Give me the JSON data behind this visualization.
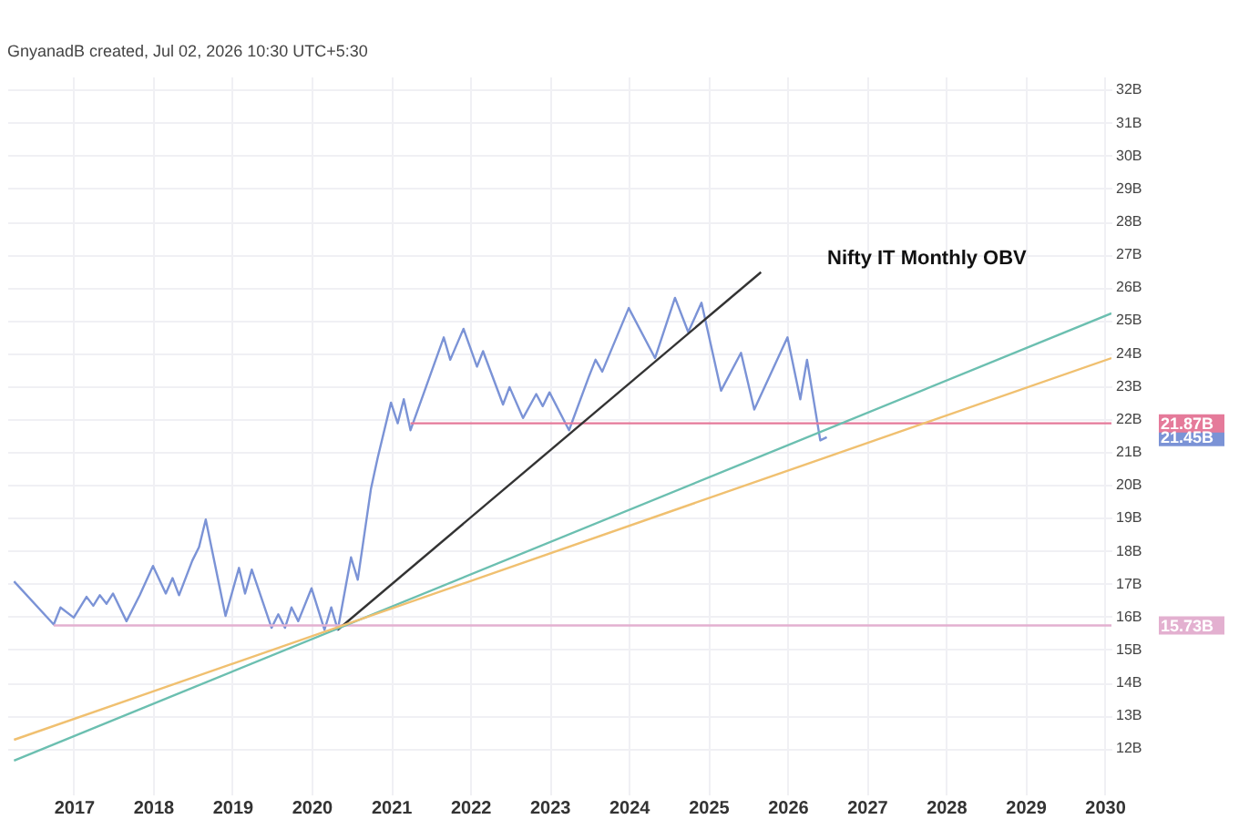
{
  "chart_data": {
    "type": "line",
    "title": "Nifty IT Monthly OBV",
    "annotations": [
      "GnyanadB created, Jul 02, 2026 10:30 UTC+5:30",
      {
        "text": "21.87B",
        "x": "2030-02",
        "y": 21.87
      },
      "21.45B",
      {
        "text": "15.73B",
        "x": "2030-02",
        "y": 15.73
      }
    ],
    "series": [
      {
        "type": "line",
        "color": "#7b93d6",
        "x": [
          "2016-04",
          "2016-10",
          "2016-11",
          "2017-01",
          "2017-03",
          "2017-04",
          "2017-05",
          "2017-06",
          "2017-07",
          "2017-09",
          "2017-11",
          "2018-01",
          "2018-03",
          "2018-04",
          "2018-05",
          "2018-07",
          "2018-08",
          "2018-09",
          "2018-12",
          "2019-02",
          "2019-03",
          "2019-04",
          "2019-07",
          "2019-08",
          "2019-09",
          "2019-10",
          "2019-11",
          "2020-01",
          "2020-03",
          "2020-04",
          "2020-05",
          "2020-07",
          "2020-08",
          "2020-10",
          "2020-11",
          "2021-01",
          "2021-02",
          "2021-03",
          "2021-04",
          "2021-09",
          "2021-10",
          "2021-12",
          "2022-02",
          "2022-03",
          "2022-06",
          "2022-07",
          "2022-09",
          "2022-11",
          "2022-12",
          "2023-01",
          "2023-04",
          "2023-07",
          "2023-08",
          "2023-09",
          "2024-01",
          "2024-05",
          "2024-08",
          "2024-10",
          "2024-12",
          "2025-03",
          "2025-06",
          "2025-08",
          "2026-01",
          "2026-03",
          "2026-04",
          "2026-06",
          "2026-07"
        ],
        "values": [
          17.07,
          15.76,
          16.28,
          15.97,
          16.6,
          16.33,
          16.65,
          16.39,
          16.7,
          15.86,
          16.65,
          17.54,
          16.7,
          17.17,
          16.65,
          17.7,
          18.11,
          18.95,
          16.02,
          17.48,
          16.7,
          17.43,
          15.66,
          16.07,
          15.66,
          16.28,
          15.86,
          16.86,
          15.6,
          16.28,
          15.6,
          17.8,
          17.12,
          19.89,
          20.83,
          22.5,
          21.87,
          22.6,
          21.66,
          24.48,
          23.8,
          24.74,
          23.59,
          24.06,
          22.44,
          22.97,
          22.03,
          22.76,
          22.39,
          22.81,
          21.66,
          23.28,
          23.8,
          23.44,
          25.37,
          23.85,
          25.68,
          24.64,
          25.53,
          22.86,
          24.01,
          22.29,
          24.48,
          22.6,
          23.8,
          21.35,
          21.45
        ]
      },
      {
        "type": "line",
        "color": "#e57a9a",
        "x": [
          "2021-04",
          "2030-02"
        ],
        "values": [
          21.87,
          21.87
        ]
      },
      {
        "type": "line",
        "color": "#e3b0d0",
        "x": [
          "2016-10",
          "2030-02"
        ],
        "values": [
          15.73,
          15.73
        ]
      },
      {
        "type": "line",
        "color": "#333333",
        "x": [
          "2020-05",
          "2025-09"
        ],
        "values": [
          15.6,
          26.46
        ]
      },
      {
        "type": "line",
        "color": "#6bbfb0",
        "x": [
          "2016-04",
          "2030-02"
        ],
        "values": [
          11.63,
          25.21
        ]
      },
      {
        "type": "line",
        "color": "#f0c070",
        "x": [
          "2016-04",
          "2030-02"
        ],
        "values": [
          12.26,
          23.85
        ]
      }
    ],
    "xlim": [
      "2016-03",
      "2030-02"
    ],
    "ylim": [
      10.6,
      32.4
    ],
    "xticks": [
      "2017",
      "2018",
      "2019",
      "2020",
      "2021",
      "2022",
      "2023",
      "2024",
      "2025",
      "2026",
      "2027",
      "2028",
      "2029",
      "2030"
    ],
    "yticks": [
      {
        "value": 12,
        "label": "12B"
      },
      {
        "value": 13,
        "label": "13B"
      },
      {
        "value": 14,
        "label": "14B"
      },
      {
        "value": 15,
        "label": "15B"
      },
      {
        "value": 16,
        "label": "16B"
      },
      {
        "value": 17,
        "label": "17B"
      },
      {
        "value": 18,
        "label": "18B"
      },
      {
        "value": 19,
        "label": "19B"
      },
      {
        "value": 20,
        "label": "20B"
      },
      {
        "value": 21,
        "label": "21B"
      },
      {
        "value": 22,
        "label": "22B"
      },
      {
        "value": 23,
        "label": "23B"
      },
      {
        "value": 24,
        "label": "24B"
      },
      {
        "value": 25,
        "label": "25B"
      },
      {
        "value": 26,
        "label": "26B"
      },
      {
        "value": 27,
        "label": "27B"
      },
      {
        "value": 28,
        "label": "28B"
      },
      {
        "value": 29,
        "label": "29B"
      },
      {
        "value": 30,
        "label": "30B"
      },
      {
        "value": 31,
        "label": "31B"
      },
      {
        "value": 32,
        "label": "32B"
      }
    ],
    "grid": true,
    "legend": false,
    "marker": "none",
    "line_style": "solid"
  }
}
